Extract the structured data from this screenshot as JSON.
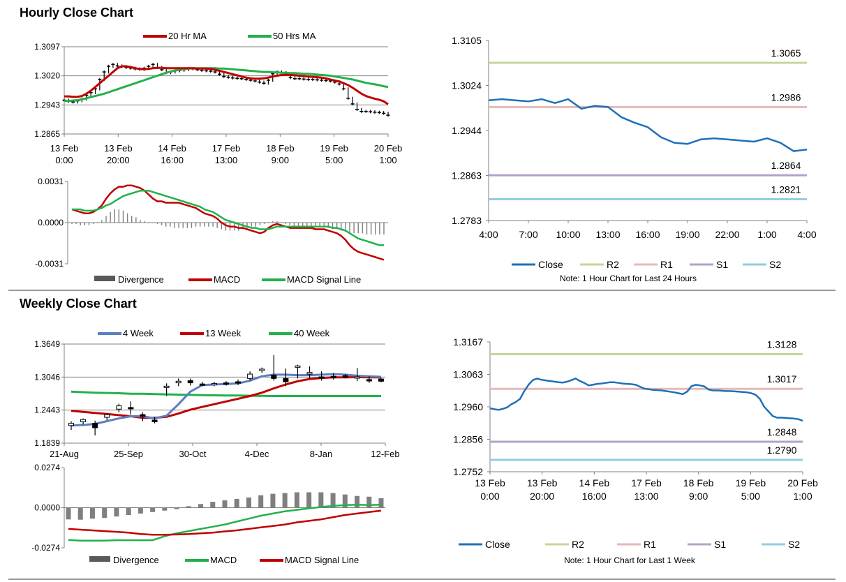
{
  "sections": {
    "hourly_title": "Hourly Close Chart",
    "weekly_title": "Weekly Close Chart"
  },
  "colors": {
    "ma_red": "#c00000",
    "ma_green": "#22b14c",
    "ma_blue": "#5b7fbf",
    "close_blue": "#1f70b8",
    "r2": "#c4d79b",
    "r1": "#e6b9b8",
    "s1": "#b3a2c7",
    "s2": "#93cddd",
    "bars": "#7f7f7f",
    "axis": "#808080"
  },
  "chart_data": [
    {
      "id": "hourly_price",
      "type": "candlestick",
      "title": "Hourly Close Chart",
      "legend": [
        "20 Hr MA",
        "50 Hrs MA"
      ],
      "ylim": [
        1.2865,
        1.3097
      ],
      "y_ticks": [
        "1.3097",
        "1.3020",
        "1.2943",
        "1.2865"
      ],
      "x_ticks": [
        [
          "13 Feb",
          "0:00"
        ],
        [
          "13 Feb",
          "20:00"
        ],
        [
          "14 Feb",
          "16:00"
        ],
        [
          "17 Feb",
          "13:00"
        ],
        [
          "18 Feb",
          "9:00"
        ],
        [
          "19 Feb",
          "5:00"
        ],
        [
          "20 Feb",
          "1:00"
        ]
      ],
      "close": [
        1.2955,
        1.2952,
        1.295,
        1.2953,
        1.2958,
        1.2968,
        1.2975,
        1.2985,
        1.301,
        1.303,
        1.3045,
        1.305,
        1.3046,
        1.3044,
        1.3042,
        1.304,
        1.3038,
        1.3037,
        1.304,
        1.3045,
        1.305,
        1.3042,
        1.3036,
        1.3028,
        1.303,
        1.3033,
        1.3034,
        1.3036,
        1.3038,
        1.3038,
        1.3036,
        1.3034,
        1.3033,
        1.3032,
        1.303,
        1.3024,
        1.3018,
        1.3016,
        1.3014,
        1.3013,
        1.3012,
        1.301,
        1.3008,
        1.3006,
        1.3003,
        1.3,
        1.3008,
        1.3025,
        1.303,
        1.3028,
        1.3025,
        1.3015,
        1.3012,
        1.3012,
        1.3011,
        1.301,
        1.301,
        1.3009,
        1.3008,
        1.3007,
        1.3006,
        1.3003,
        1.2998,
        1.2985,
        1.296,
        1.2945,
        1.293,
        1.2925,
        1.2925,
        1.2924,
        1.2923,
        1.2922,
        1.292,
        1.2915
      ],
      "ma20": [
        1.2965,
        1.2965,
        1.2964,
        1.2964,
        1.2966,
        1.2972,
        1.298,
        1.299,
        1.3,
        1.301,
        1.302,
        1.303,
        1.304,
        1.3045,
        1.3045,
        1.3043,
        1.304,
        1.3038,
        1.3037,
        1.3038,
        1.304,
        1.3041,
        1.3041,
        1.304,
        1.304,
        1.304,
        1.304,
        1.304,
        1.304,
        1.304,
        1.3039,
        1.3039,
        1.3039,
        1.3038,
        1.3036,
        1.3033,
        1.303,
        1.3027,
        1.3024,
        1.3021,
        1.3018,
        1.3015,
        1.3013,
        1.3012,
        1.3012,
        1.3013,
        1.3015,
        1.3018,
        1.302,
        1.3022,
        1.3022,
        1.3022,
        1.3021,
        1.302,
        1.3019,
        1.3018,
        1.3017,
        1.3016,
        1.3015,
        1.3013,
        1.301,
        1.3007,
        1.3005,
        1.3,
        1.2995,
        1.2988,
        1.298,
        1.2972,
        1.2966,
        1.2962,
        1.2959,
        1.2956,
        1.2952,
        1.2944
      ],
      "ma50": [
        1.2953,
        1.2953,
        1.2954,
        1.2955,
        1.2957,
        1.296,
        1.2963,
        1.2966,
        1.2969,
        1.2972,
        1.2976,
        1.298,
        1.2984,
        1.2988,
        1.2992,
        1.2996,
        1.3,
        1.3004,
        1.3008,
        1.3012,
        1.3016,
        1.302,
        1.3024,
        1.3028,
        1.3031,
        1.3034,
        1.3036,
        1.3038,
        1.3039,
        1.304,
        1.304,
        1.304,
        1.304,
        1.304,
        1.304,
        1.3039,
        1.3039,
        1.3038,
        1.3037,
        1.3036,
        1.3035,
        1.3034,
        1.3033,
        1.3032,
        1.3031,
        1.303,
        1.303,
        1.3029,
        1.3029,
        1.3028,
        1.3028,
        1.3027,
        1.3027,
        1.3026,
        1.3025,
        1.3025,
        1.3024,
        1.3023,
        1.3022,
        1.3021,
        1.302,
        1.3018,
        1.3016,
        1.3014,
        1.3012,
        1.301,
        1.3007,
        1.3004,
        1.3001,
        1.2999,
        1.2997,
        1.2995,
        1.2992,
        1.299
      ]
    },
    {
      "id": "hourly_macd",
      "type": "bar_line",
      "legend": [
        "Divergence",
        "MACD",
        "MACD Signal Line"
      ],
      "ylim": [
        -0.0031,
        0.0031
      ],
      "y_ticks": [
        "0.0031",
        "0.0000",
        "-0.0031"
      ],
      "divergence": [
        -0.0001,
        -0.0001,
        -0.0002,
        -0.0002,
        -0.0002,
        -0.0001,
        0.0,
        0.0002,
        0.0005,
        0.0008,
        0.001,
        0.001,
        0.0009,
        0.0007,
        0.0005,
        0.0004,
        0.0002,
        0.0001,
        0.0,
        0.0,
        -0.0001,
        -0.0002,
        -0.0003,
        -0.0003,
        -0.0004,
        -0.0004,
        -0.0004,
        -0.0004,
        -0.0004,
        -0.0003,
        -0.0003,
        -0.0003,
        -0.0003,
        -0.0003,
        -0.0004,
        -0.0005,
        -0.0006,
        -0.0006,
        -0.0006,
        -0.0006,
        -0.0005,
        -0.0004,
        -0.0003,
        -0.0003,
        -0.0002,
        -0.0001,
        0.0,
        0.0001,
        0.0001,
        0.0,
        -0.0001,
        -0.0002,
        -0.0003,
        -0.0003,
        -0.0003,
        -0.0003,
        -0.0003,
        -0.0003,
        -0.0003,
        -0.0003,
        -0.0004,
        -0.0005,
        -0.0005,
        -0.0006,
        -0.0007,
        -0.0008,
        -0.0008,
        -0.0008,
        -0.0008,
        -0.0009,
        -0.0009,
        -0.0009,
        -0.0009,
        -0.0009
      ],
      "macd": [
        0.001,
        0.0009,
        0.0008,
        0.0007,
        0.0007,
        0.0008,
        0.001,
        0.0013,
        0.0018,
        0.0022,
        0.0025,
        0.0027,
        0.0027,
        0.0028,
        0.0028,
        0.0027,
        0.0026,
        0.0024,
        0.0021,
        0.0018,
        0.0016,
        0.0016,
        0.0015,
        0.0015,
        0.0015,
        0.0015,
        0.0014,
        0.0013,
        0.0012,
        0.0011,
        0.0009,
        0.0007,
        0.0006,
        0.0005,
        0.0003,
        0.0,
        -0.0002,
        -0.0003,
        -0.0003,
        -0.0004,
        -0.0004,
        -0.0005,
        -0.0006,
        -0.0007,
        -0.0008,
        -0.0007,
        -0.0004,
        -0.0002,
        -0.0001,
        -0.0002,
        -0.0003,
        -0.0004,
        -0.0004,
        -0.0004,
        -0.0004,
        -0.0004,
        -0.0004,
        -0.0005,
        -0.0005,
        -0.0005,
        -0.0006,
        -0.0007,
        -0.0008,
        -0.001,
        -0.0013,
        -0.0017,
        -0.002,
        -0.0022,
        -0.0023,
        -0.0024,
        -0.0025,
        -0.0026,
        -0.0027,
        -0.0028
      ],
      "signal": [
        0.001,
        0.001,
        0.001,
        0.0009,
        0.0009,
        0.0009,
        0.001,
        0.0011,
        0.0013,
        0.0014,
        0.0016,
        0.0018,
        0.002,
        0.0021,
        0.0022,
        0.0023,
        0.0024,
        0.0024,
        0.0024,
        0.0023,
        0.0022,
        0.0021,
        0.002,
        0.0019,
        0.0018,
        0.0017,
        0.0016,
        0.0015,
        0.0014,
        0.0013,
        0.0012,
        0.001,
        0.0009,
        0.0008,
        0.0006,
        0.0004,
        0.0002,
        0.0001,
        0.0,
        -0.0001,
        -0.0002,
        -0.0003,
        -0.0004,
        -0.0004,
        -0.0005,
        -0.0005,
        -0.0005,
        -0.0004,
        -0.0003,
        -0.0003,
        -0.0003,
        -0.0003,
        -0.0003,
        -0.0003,
        -0.0003,
        -0.0003,
        -0.0003,
        -0.0003,
        -0.0003,
        -0.0003,
        -0.0003,
        -0.0004,
        -0.0004,
        -0.0005,
        -0.0006,
        -0.0008,
        -0.001,
        -0.0012,
        -0.0013,
        -0.0014,
        -0.0015,
        -0.0016,
        -0.0017,
        -0.0017
      ]
    },
    {
      "id": "hourly_levels",
      "type": "line",
      "ylim": [
        1.2783,
        1.3105
      ],
      "y_ticks": [
        "1.3105",
        "1.3024",
        "1.2944",
        "1.2863",
        "1.2783"
      ],
      "x_ticks": [
        "4:00",
        "7:00",
        "10:00",
        "13:00",
        "16:00",
        "19:00",
        "22:00",
        "1:00",
        "4:00"
      ],
      "close": [
        1.2998,
        1.3,
        1.2998,
        1.2996,
        1.3,
        1.2993,
        1.3,
        1.2983,
        1.2988,
        1.2986,
        1.2968,
        1.2958,
        1.295,
        1.2932,
        1.2922,
        1.292,
        1.2928,
        1.293,
        1.2928,
        1.2926,
        1.2924,
        1.293,
        1.2922,
        1.2907,
        1.291
      ],
      "levels": [
        {
          "name": "R2",
          "value": 1.3065,
          "label": "1.3065"
        },
        {
          "name": "R1",
          "value": 1.2986,
          "label": "1.2986"
        },
        {
          "name": "S1",
          "value": 1.2864,
          "label": "1.2864"
        },
        {
          "name": "S2",
          "value": 1.2821,
          "label": "1.2821"
        }
      ],
      "legend": [
        "Close",
        "R2",
        "R1",
        "S1",
        "S2"
      ],
      "note": "Note: 1 Hour Chart for Last 24 Hours"
    },
    {
      "id": "weekly_price",
      "type": "candlestick",
      "title": "Weekly Close Chart",
      "legend": [
        "4 Week",
        "13 Week",
        "40 Week"
      ],
      "ylim": [
        1.1839,
        1.3649
      ],
      "y_ticks": [
        "1.3649",
        "1.3046",
        "1.2443",
        "1.1839"
      ],
      "x_ticks": [
        "21-Aug",
        "25-Sep",
        "30-Oct",
        "4-Dec",
        "8-Jan",
        "12-Feb"
      ],
      "candles": [
        {
          "o": 1.216,
          "c": 1.22,
          "h": 1.224,
          "l": 1.208
        },
        {
          "o": 1.223,
          "c": 1.227,
          "h": 1.229,
          "l": 1.218
        },
        {
          "o": 1.22,
          "c": 1.212,
          "h": 1.225,
          "l": 1.198
        },
        {
          "o": 1.231,
          "c": 1.236,
          "h": 1.238,
          "l": 1.226
        },
        {
          "o": 1.246,
          "c": 1.252,
          "h": 1.256,
          "l": 1.24
        },
        {
          "o": 1.249,
          "c": 1.247,
          "h": 1.26,
          "l": 1.236
        },
        {
          "o": 1.236,
          "c": 1.233,
          "h": 1.24,
          "l": 1.224
        },
        {
          "o": 1.226,
          "c": 1.223,
          "h": 1.232,
          "l": 1.22
        },
        {
          "o": 1.286,
          "c": 1.288,
          "h": 1.293,
          "l": 1.27
        },
        {
          "o": 1.294,
          "c": 1.297,
          "h": 1.302,
          "l": 1.288
        },
        {
          "o": 1.298,
          "c": 1.294,
          "h": 1.302,
          "l": 1.289
        },
        {
          "o": 1.292,
          "c": 1.291,
          "h": 1.296,
          "l": 1.288
        },
        {
          "o": 1.292,
          "c": 1.293,
          "h": 1.296,
          "l": 1.288
        },
        {
          "o": 1.294,
          "c": 1.292,
          "h": 1.297,
          "l": 1.289
        },
        {
          "o": 1.296,
          "c": 1.294,
          "h": 1.3,
          "l": 1.29
        },
        {
          "o": 1.302,
          "c": 1.31,
          "h": 1.315,
          "l": 1.298
        },
        {
          "o": 1.317,
          "c": 1.319,
          "h": 1.322,
          "l": 1.312
        },
        {
          "o": 1.308,
          "c": 1.302,
          "h": 1.345,
          "l": 1.298
        },
        {
          "o": 1.302,
          "c": 1.296,
          "h": 1.32,
          "l": 1.288
        },
        {
          "o": 1.323,
          "c": 1.325,
          "h": 1.327,
          "l": 1.302
        },
        {
          "o": 1.31,
          "c": 1.313,
          "h": 1.324,
          "l": 1.302
        },
        {
          "o": 1.305,
          "c": 1.304,
          "h": 1.315,
          "l": 1.298
        },
        {
          "o": 1.306,
          "c": 1.305,
          "h": 1.312,
          "l": 1.3
        },
        {
          "o": 1.307,
          "c": 1.306,
          "h": 1.31,
          "l": 1.302
        },
        {
          "o": 1.304,
          "c": 1.305,
          "h": 1.321,
          "l": 1.297
        },
        {
          "o": 1.3,
          "c": 1.299,
          "h": 1.306,
          "l": 1.294
        },
        {
          "o": 1.301,
          "c": 1.297,
          "h": 1.303,
          "l": 1.295
        }
      ],
      "ma4": [
        1.216,
        1.217,
        1.219,
        1.224,
        1.229,
        1.233,
        1.233,
        1.229,
        1.234,
        1.255,
        1.278,
        1.29,
        1.291,
        1.292,
        1.293,
        1.298,
        1.306,
        1.309,
        1.309,
        1.308,
        1.308,
        1.309,
        1.31,
        1.309,
        1.307,
        1.306,
        1.305
      ],
      "ma13": [
        1.243,
        1.241,
        1.239,
        1.237,
        1.235,
        1.233,
        1.23,
        1.23,
        1.232,
        1.238,
        1.245,
        1.25,
        1.255,
        1.26,
        1.265,
        1.27,
        1.276,
        1.284,
        1.291,
        1.297,
        1.301,
        1.303,
        1.304,
        1.304,
        1.3045,
        1.304,
        1.304
      ],
      "ma40": [
        1.278,
        1.277,
        1.276,
        1.2755,
        1.275,
        1.274,
        1.274,
        1.2735,
        1.273,
        1.2725,
        1.272,
        1.2715,
        1.2712,
        1.271,
        1.2708,
        1.2705,
        1.2702,
        1.27,
        1.27,
        1.27,
        1.27,
        1.27,
        1.27,
        1.27,
        1.27,
        1.27,
        1.27
      ]
    },
    {
      "id": "weekly_macd",
      "type": "bar_line",
      "legend": [
        "Divergence",
        "MACD",
        "MACD Signal Line"
      ],
      "ylim": [
        -0.0274,
        0.0274
      ],
      "y_ticks": [
        "0.0274",
        "0.0000",
        "-0.0274"
      ],
      "divergence": [
        -0.008,
        -0.0082,
        -0.0075,
        -0.007,
        -0.006,
        -0.005,
        -0.004,
        -0.003,
        -0.002,
        -0.001,
        0.001,
        0.0025,
        0.004,
        0.005,
        0.006,
        0.007,
        0.0085,
        0.0095,
        0.01,
        0.0105,
        0.0105,
        0.0105,
        0.01,
        0.009,
        0.008,
        0.0075,
        0.0065
      ],
      "macd": [
        -0.022,
        -0.0225,
        -0.0225,
        -0.0225,
        -0.0222,
        -0.0222,
        -0.0222,
        -0.0222,
        -0.0195,
        -0.0175,
        -0.016,
        -0.0145,
        -0.013,
        -0.0115,
        -0.0095,
        -0.0075,
        -0.0055,
        -0.004,
        -0.0025,
        -0.0015,
        -0.0005,
        0.0005,
        0.0012,
        0.0018,
        0.002,
        0.0018,
        0.002
      ],
      "signal": [
        -0.0145,
        -0.015,
        -0.0155,
        -0.016,
        -0.0165,
        -0.017,
        -0.018,
        -0.0185,
        -0.0185,
        -0.0183,
        -0.018,
        -0.0175,
        -0.017,
        -0.0162,
        -0.0155,
        -0.0145,
        -0.0135,
        -0.0125,
        -0.0115,
        -0.01,
        -0.009,
        -0.008,
        -0.0065,
        -0.005,
        -0.004,
        -0.003,
        -0.002
      ]
    },
    {
      "id": "weekly_levels",
      "type": "line",
      "ylim": [
        1.2752,
        1.3167
      ],
      "y_ticks": [
        "1.3167",
        "1.3063",
        "1.2960",
        "1.2856",
        "1.2752"
      ],
      "x_ticks": [
        [
          "13 Feb",
          "0:00"
        ],
        [
          "13 Feb",
          "20:00"
        ],
        [
          "14 Feb",
          "16:00"
        ],
        [
          "17 Feb",
          "13:00"
        ],
        [
          "18 Feb",
          "9:00"
        ],
        [
          "19 Feb",
          "5:00"
        ],
        [
          "20 Feb",
          "1:00"
        ]
      ],
      "close": [
        1.2955,
        1.2952,
        1.295,
        1.2953,
        1.2958,
        1.2968,
        1.2975,
        1.2985,
        1.301,
        1.303,
        1.3045,
        1.305,
        1.3046,
        1.3044,
        1.3042,
        1.304,
        1.3038,
        1.3037,
        1.304,
        1.3045,
        1.305,
        1.3042,
        1.3036,
        1.3028,
        1.303,
        1.3033,
        1.3034,
        1.3036,
        1.3038,
        1.3038,
        1.3036,
        1.3034,
        1.3033,
        1.3032,
        1.303,
        1.3024,
        1.3018,
        1.3016,
        1.3014,
        1.3013,
        1.3012,
        1.301,
        1.3008,
        1.3006,
        1.3003,
        1.3,
        1.3008,
        1.3025,
        1.303,
        1.3028,
        1.3025,
        1.3015,
        1.3012,
        1.3012,
        1.3011,
        1.301,
        1.301,
        1.3009,
        1.3008,
        1.3007,
        1.3006,
        1.3003,
        1.2998,
        1.2985,
        1.296,
        1.2945,
        1.293,
        1.2925,
        1.2925,
        1.2924,
        1.2923,
        1.2922,
        1.292,
        1.2915
      ],
      "levels": [
        {
          "name": "R2",
          "value": 1.3128,
          "label": "1.3128"
        },
        {
          "name": "R1",
          "value": 1.3017,
          "label": "1.3017"
        },
        {
          "name": "S1",
          "value": 1.2848,
          "label": "1.2848"
        },
        {
          "name": "S2",
          "value": 1.279,
          "label": "1.2790"
        }
      ],
      "legend": [
        "Close",
        "R2",
        "R1",
        "S1",
        "S2"
      ],
      "note": "Note: 1 Hour Chart for Last 1 Week"
    }
  ]
}
